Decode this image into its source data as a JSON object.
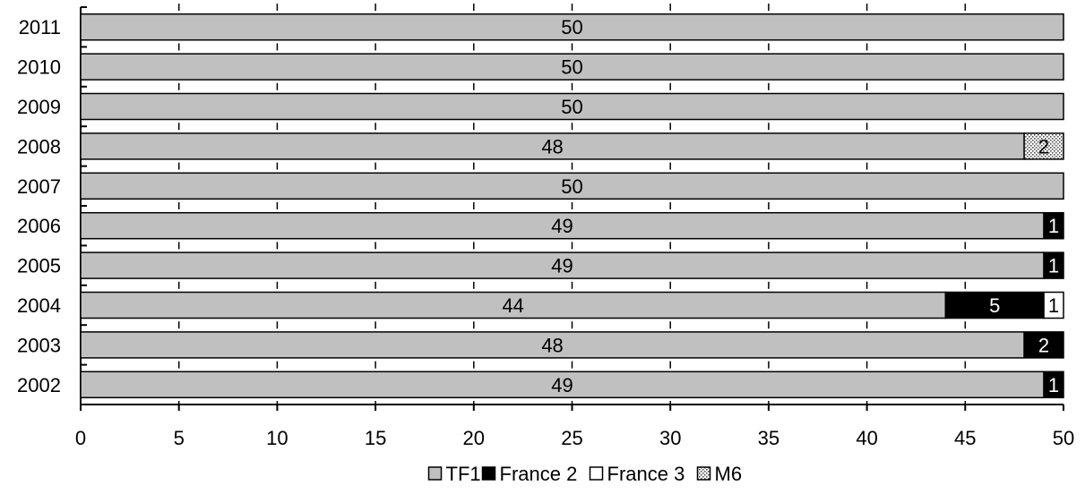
{
  "chart_data": {
    "type": "bar",
    "orientation": "horizontal",
    "stacked": true,
    "categories": [
      "2011",
      "2010",
      "2009",
      "2008",
      "2007",
      "2006",
      "2005",
      "2004",
      "2003",
      "2002"
    ],
    "series": [
      {
        "name": "TF1",
        "color": "#c0c0c0",
        "pattern": "solid",
        "label_color": "#000000",
        "values": [
          50,
          50,
          50,
          48,
          50,
          49,
          49,
          44,
          48,
          49
        ]
      },
      {
        "name": "France 2",
        "color": "#000000",
        "pattern": "solid",
        "label_color": "#ffffff",
        "values": [
          0,
          0,
          0,
          0,
          0,
          1,
          1,
          5,
          2,
          1
        ]
      },
      {
        "name": "France 3",
        "color": "#ffffff",
        "pattern": "solid",
        "label_color": "#000000",
        "values": [
          0,
          0,
          0,
          0,
          0,
          0,
          0,
          1,
          0,
          0
        ]
      },
      {
        "name": "M6",
        "color": "#e0e0e0",
        "pattern": "dotted",
        "label_color": "#000000",
        "values": [
          0,
          0,
          0,
          2,
          0,
          0,
          0,
          0,
          0,
          0
        ]
      }
    ],
    "xlim": [
      0,
      50
    ],
    "xticks": [
      "0",
      "5",
      "10",
      "15",
      "20",
      "25",
      "30",
      "35",
      "40",
      "45",
      "50"
    ],
    "grid": false,
    "legend_position": "bottom",
    "title": "",
    "xlabel": "",
    "ylabel": ""
  }
}
